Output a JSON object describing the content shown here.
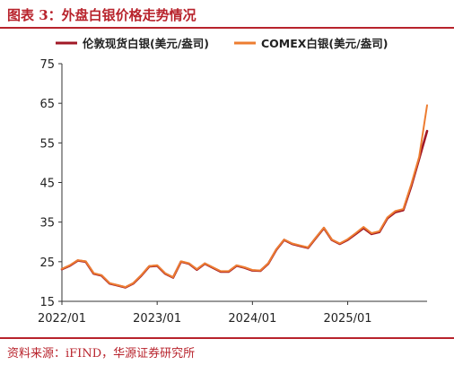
{
  "figure": {
    "title": "图表 3：外盘白银价格走势情况",
    "source": "资料来源：iFIND，华源证券研究所"
  },
  "chart_data": {
    "type": "line",
    "title": "",
    "xlabel": "",
    "ylabel": "",
    "ylim": [
      15,
      75
    ],
    "yticks": [
      15,
      25,
      35,
      45,
      55,
      65,
      75
    ],
    "xlim": [
      "2022/01",
      "2025/11"
    ],
    "xticks": [
      "2022/01",
      "2023/01",
      "2024/01",
      "2025/01"
    ],
    "grid": false,
    "legend": "top-center",
    "x": [
      "2022/01",
      "2022/02",
      "2022/03",
      "2022/04",
      "2022/05",
      "2022/06",
      "2022/07",
      "2022/08",
      "2022/09",
      "2022/10",
      "2022/11",
      "2022/12",
      "2023/01",
      "2023/02",
      "2023/03",
      "2023/04",
      "2023/05",
      "2023/06",
      "2023/07",
      "2023/08",
      "2023/09",
      "2023/10",
      "2023/11",
      "2023/12",
      "2024/01",
      "2024/02",
      "2024/03",
      "2024/04",
      "2024/05",
      "2024/06",
      "2024/07",
      "2024/08",
      "2024/09",
      "2024/10",
      "2024/11",
      "2024/12",
      "2025/01",
      "2025/02",
      "2025/03",
      "2025/04",
      "2025/05",
      "2025/06",
      "2025/07",
      "2025/08",
      "2025/09",
      "2025/10",
      "2025/11"
    ],
    "series": [
      {
        "name": "伦敦现货白银(美元/盎司)",
        "color": "#a11826",
        "values": [
          23.1,
          24.0,
          25.3,
          25.0,
          22.0,
          21.5,
          19.5,
          19.0,
          18.5,
          19.5,
          21.5,
          23.8,
          24.0,
          22.0,
          21.0,
          25.0,
          24.5,
          23.0,
          24.5,
          23.5,
          22.5,
          22.5,
          24.0,
          23.5,
          22.8,
          22.7,
          24.5,
          28.0,
          30.5,
          29.5,
          29.0,
          28.5,
          31.0,
          33.5,
          30.5,
          29.5,
          30.5,
          32.0,
          33.5,
          32.0,
          32.5,
          36.0,
          37.5,
          38.0,
          44.0,
          51.0,
          58.0
        ]
      },
      {
        "name": "COMEX白银(美元/盎司)",
        "color": "#ed7d31",
        "values": [
          23.2,
          24.1,
          25.4,
          25.1,
          22.1,
          21.6,
          19.6,
          19.1,
          18.6,
          19.6,
          21.6,
          23.9,
          24.1,
          22.1,
          21.1,
          25.1,
          24.6,
          23.1,
          24.6,
          23.6,
          22.6,
          22.6,
          24.1,
          23.6,
          22.9,
          22.8,
          24.6,
          28.1,
          30.6,
          29.6,
          29.1,
          28.6,
          31.1,
          33.6,
          30.6,
          29.6,
          30.7,
          32.2,
          33.8,
          32.2,
          32.7,
          36.2,
          37.8,
          38.3,
          44.5,
          51.5,
          64.5
        ]
      }
    ]
  }
}
